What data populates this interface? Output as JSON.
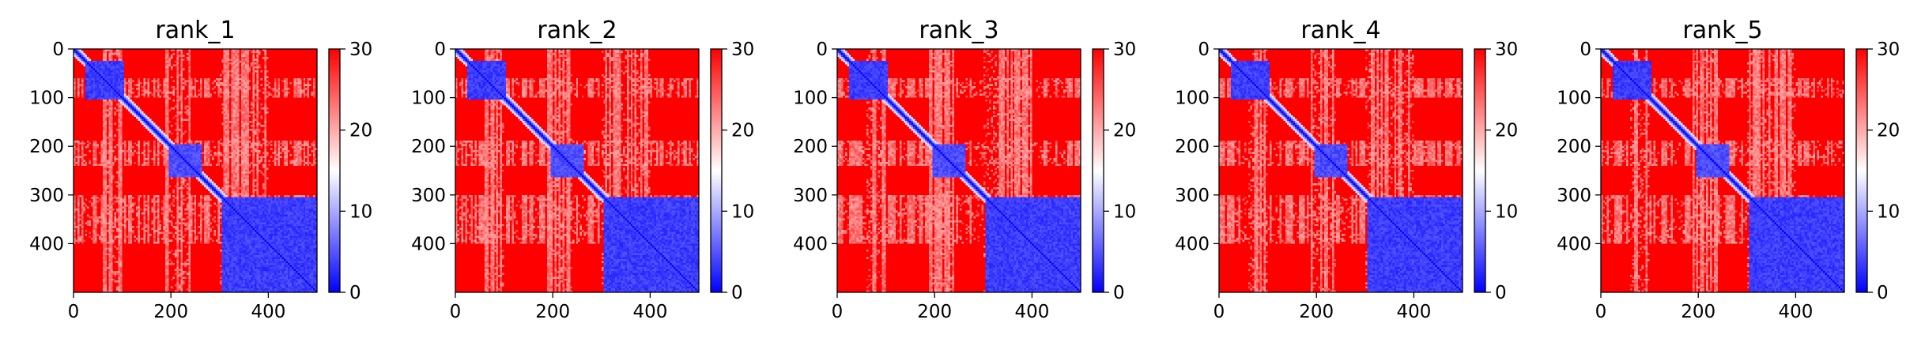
{
  "chart_data": {
    "type": "heatmap",
    "panels": [
      {
        "title": "rank_1"
      },
      {
        "title": "rank_2"
      },
      {
        "title": "rank_3"
      },
      {
        "title": "rank_4"
      },
      {
        "title": "rank_5"
      }
    ],
    "matrix_size": 500,
    "x_ticks": [
      0,
      200,
      400
    ],
    "y_ticks": [
      0,
      100,
      200,
      300,
      400
    ],
    "xlim": [
      0,
      500
    ],
    "ylim": [
      500,
      0
    ],
    "color_scale": {
      "min": 0,
      "max": 30,
      "ticks": [
        0,
        10,
        20,
        30
      ],
      "colormap": "bwr",
      "low_color": "#0000ff",
      "mid_color": "#ffffff",
      "high_color": "#ff0000"
    },
    "blocks": [
      {
        "from": 25,
        "to": 105,
        "value": 2
      },
      {
        "from": 195,
        "to": 265,
        "value": 3
      },
      {
        "from": 305,
        "to": 500,
        "value": 2
      }
    ],
    "diagonal_value": 0,
    "background_value": 30,
    "light_bands": [
      {
        "from": 60,
        "to": 100
      },
      {
        "from": 190,
        "to": 240
      },
      {
        "from": 300,
        "to": 400
      }
    ]
  }
}
